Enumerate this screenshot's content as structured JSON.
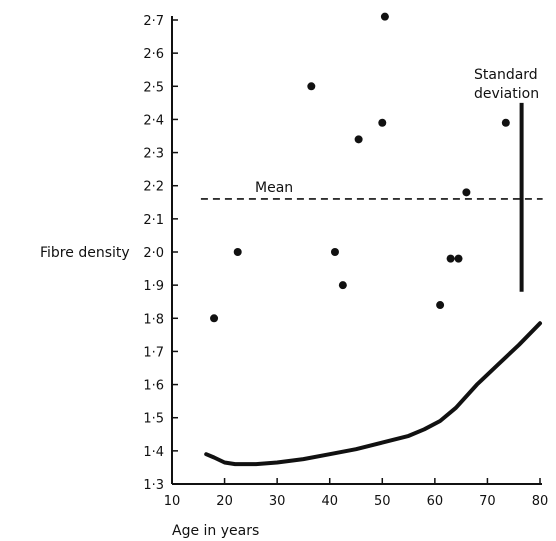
{
  "chart_data": {
    "type": "scatter",
    "ylabel": "Fibre density",
    "xlabel": "Age in years",
    "xlim": [
      10,
      80
    ],
    "ylim": [
      1.3,
      2.7
    ],
    "x_ticks": [
      10,
      20,
      30,
      40,
      50,
      60,
      70,
      80
    ],
    "y_ticks": [
      1.3,
      1.4,
      1.5,
      1.6,
      1.7,
      1.8,
      1.9,
      2.0,
      2.1,
      2.2,
      2.3,
      2.4,
      2.5,
      2.6,
      2.7
    ],
    "y_tick_labels": [
      "1·3",
      "1·4",
      "1·5",
      "1·6",
      "1·7",
      "1·8",
      "1·9",
      "2·0",
      "2·1",
      "2·2",
      "2·3",
      "2·4",
      "2·5",
      "2·6",
      "2·7"
    ],
    "points": [
      {
        "x": 18,
        "y": 1.8
      },
      {
        "x": 22.5,
        "y": 2.0
      },
      {
        "x": 36.5,
        "y": 2.5
      },
      {
        "x": 41,
        "y": 2.0
      },
      {
        "x": 42.5,
        "y": 1.9
      },
      {
        "x": 45.5,
        "y": 2.34
      },
      {
        "x": 50,
        "y": 2.39
      },
      {
        "x": 50.5,
        "y": 2.71
      },
      {
        "x": 61,
        "y": 1.84
      },
      {
        "x": 63,
        "y": 1.98
      },
      {
        "x": 64.5,
        "y": 1.98
      },
      {
        "x": 66,
        "y": 2.18
      },
      {
        "x": 73.5,
        "y": 2.39
      }
    ],
    "mean": {
      "label": "Mean",
      "y": 2.16,
      "x_range": [
        15.5,
        80.5
      ]
    },
    "standard_deviation": {
      "label_line1": "Standard",
      "label_line2": "deviation",
      "x": 76.5,
      "y_range": [
        1.88,
        2.45
      ]
    },
    "curve": [
      {
        "x": 16.5,
        "y": 1.39
      },
      {
        "x": 18,
        "y": 1.38
      },
      {
        "x": 20,
        "y": 1.365
      },
      {
        "x": 22,
        "y": 1.36
      },
      {
        "x": 26,
        "y": 1.36
      },
      {
        "x": 30,
        "y": 1.365
      },
      {
        "x": 35,
        "y": 1.375
      },
      {
        "x": 40,
        "y": 1.39
      },
      {
        "x": 45,
        "y": 1.405
      },
      {
        "x": 50,
        "y": 1.425
      },
      {
        "x": 55,
        "y": 1.445
      },
      {
        "x": 58,
        "y": 1.465
      },
      {
        "x": 61,
        "y": 1.49
      },
      {
        "x": 64,
        "y": 1.53
      },
      {
        "x": 68,
        "y": 1.6
      },
      {
        "x": 72,
        "y": 1.66
      },
      {
        "x": 76,
        "y": 1.72
      },
      {
        "x": 80,
        "y": 1.785
      }
    ]
  }
}
